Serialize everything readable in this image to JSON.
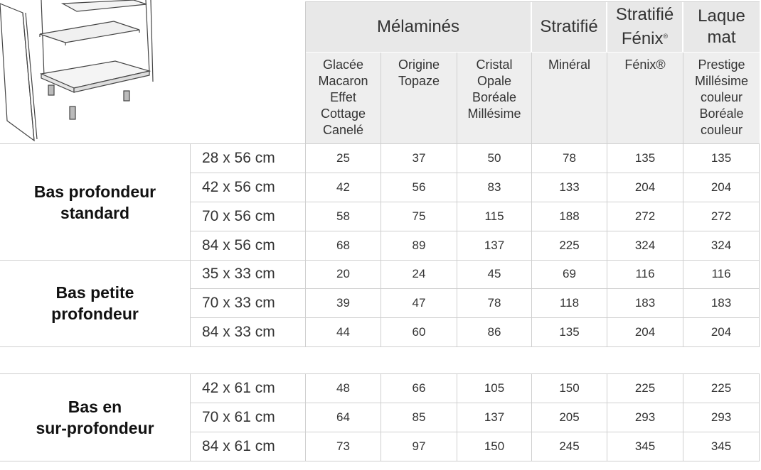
{
  "header": {
    "groups": [
      {
        "label": "Mélaminés"
      },
      {
        "label": "Stratifié"
      },
      {
        "label_line1": "Stratifié",
        "label_line2": "Fénix",
        "label_line2_mark": "®"
      },
      {
        "label_line1": "Laque",
        "label_line2": "mat"
      }
    ],
    "finishes": [
      [
        "Glacée",
        "Macaron",
        "Effet",
        "Cottage",
        "Canelé"
      ],
      [
        "Origine",
        "Topaze"
      ],
      [
        "Cristal",
        "Opale",
        "Boréale",
        "Millésime"
      ],
      [
        "Minéral"
      ],
      [
        "Fénix®"
      ],
      [
        "Prestige",
        "Millésime",
        "couleur",
        "Boréale",
        "couleur"
      ]
    ]
  },
  "sections": [
    {
      "label_line1": "Bas profondeur",
      "label_line2": "standard",
      "rows": [
        {
          "size": "28 x 56 cm",
          "prices": [
            "25",
            "37",
            "50",
            "78",
            "135",
            "135"
          ]
        },
        {
          "size": "42 x 56 cm",
          "prices": [
            "42",
            "56",
            "83",
            "133",
            "204",
            "204"
          ]
        },
        {
          "size": "70 x 56 cm",
          "prices": [
            "58",
            "75",
            "115",
            "188",
            "272",
            "272"
          ]
        },
        {
          "size": "84 x 56 cm",
          "prices": [
            "68",
            "89",
            "137",
            "225",
            "324",
            "324"
          ]
        }
      ]
    },
    {
      "label_line1": "Bas petite",
      "label_line2": "profondeur",
      "rows": [
        {
          "size": "35 x 33 cm",
          "prices": [
            "20",
            "24",
            "45",
            "69",
            "116",
            "116"
          ]
        },
        {
          "size": "70 x 33 cm",
          "prices": [
            "39",
            "47",
            "78",
            "118",
            "183",
            "183"
          ]
        },
        {
          "size": "84 x 33 cm",
          "prices": [
            "44",
            "60",
            "86",
            "135",
            "204",
            "204"
          ]
        }
      ]
    },
    {
      "label_line1": "Bas en",
      "label_line2": "sur-profondeur",
      "rows": [
        {
          "size": "42 x 61 cm",
          "prices": [
            "48",
            "66",
            "105",
            "150",
            "225",
            "225"
          ]
        },
        {
          "size": "70 x 61 cm",
          "prices": [
            "64",
            "85",
            "137",
            "205",
            "293",
            "293"
          ]
        },
        {
          "size": "84 x 61 cm",
          "prices": [
            "73",
            "97",
            "150",
            "245",
            "345",
            "345"
          ]
        }
      ]
    }
  ],
  "illustration": {
    "icon": "cabinet-illustration-icon"
  },
  "colors": {
    "header_bg": "#e8e8e8",
    "subheader_bg": "#eeeeee",
    "grid": "#cfcfcf"
  }
}
